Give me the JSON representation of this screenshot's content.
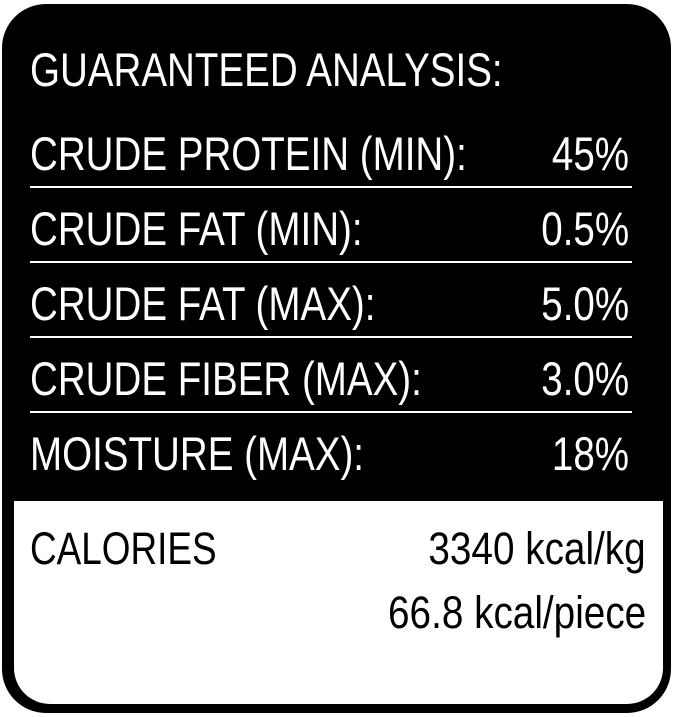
{
  "title": "GUARANTEED ANALYSIS:",
  "rows": [
    {
      "label": "CRUDE PROTEIN (MIN):",
      "value": "45%"
    },
    {
      "label": "CRUDE FAT (MIN):",
      "value": "0.5%"
    },
    {
      "label": "CRUDE FAT (MAX):",
      "value": "5.0%"
    },
    {
      "label": "CRUDE FIBER (MAX):",
      "value": "3.0%"
    },
    {
      "label": "MOISTURE (MAX):",
      "value": "18%"
    }
  ],
  "calories": {
    "label": "CALORIES",
    "per_kg": "3340 kcal/kg",
    "per_piece": "66.8 kcal/piece"
  }
}
